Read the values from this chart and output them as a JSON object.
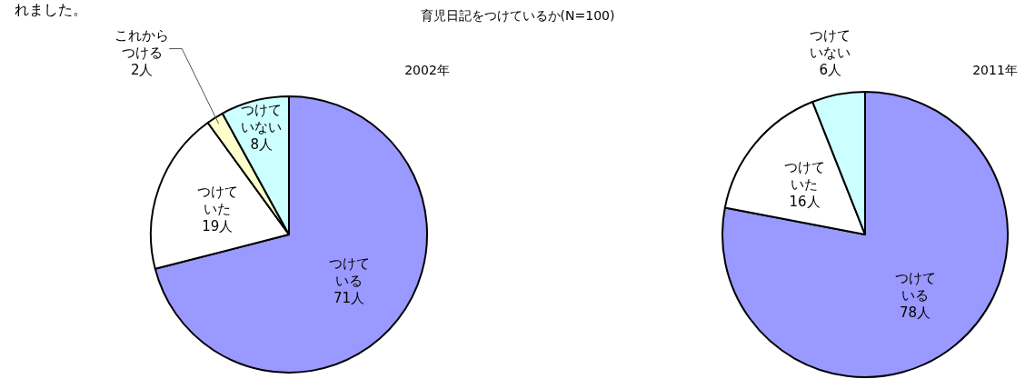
{
  "chart_data": [
    {
      "type": "pie",
      "title": "育児日記をつけているか(N=100)",
      "subtitle": "2002年",
      "annotations": [
        "れました。"
      ],
      "categories": [
        "つけている",
        "つけていた",
        "これからつける",
        "つけていない"
      ],
      "values": [
        71,
        19,
        2,
        8
      ],
      "colors": [
        "#9999ff",
        "#ffffff",
        "#ffffcc",
        "#ccffff"
      ],
      "value_labels": [
        "71人",
        "19人",
        "2人",
        "8人"
      ]
    },
    {
      "type": "pie",
      "subtitle": "2011年",
      "categories": [
        "つけている",
        "つけていた",
        "つけていない"
      ],
      "values": [
        78,
        16,
        6
      ],
      "colors": [
        "#9999ff",
        "#ffffff",
        "#ccffff"
      ],
      "value_labels": [
        "78人",
        "16人",
        "6人"
      ]
    }
  ]
}
